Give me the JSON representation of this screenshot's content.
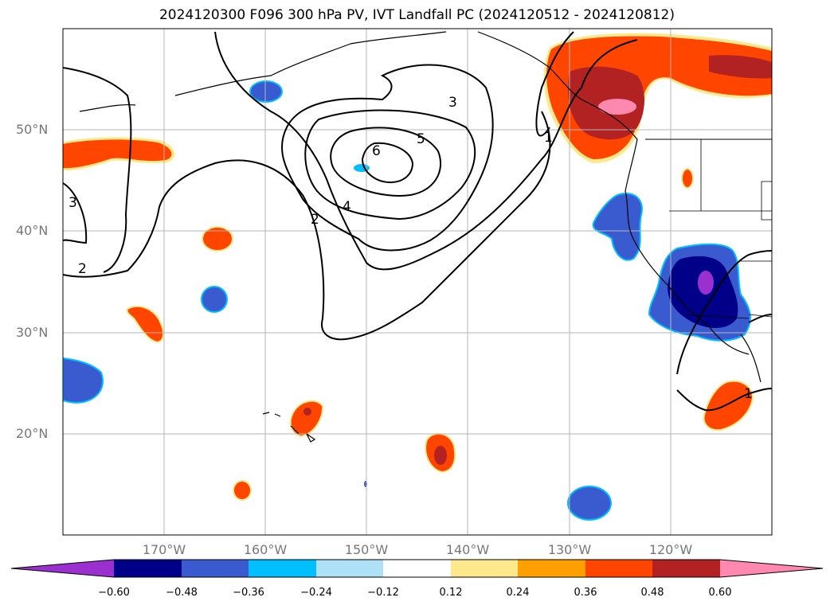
{
  "title": "2024120300 F096 300 hPa PV, IVT Landfall PC (2024120512 - 2024120812)",
  "lat_labels": [
    "50°N",
    "40°N",
    "30°N",
    "20°N"
  ],
  "lon_labels": [
    "170°W",
    "160°W",
    "150°W",
    "140°W",
    "130°W",
    "120°W"
  ],
  "contour_labels": [
    "3",
    "6",
    "5",
    "4",
    "2",
    "1",
    "3",
    "2",
    "1"
  ],
  "colorbar": {
    "ticks": [
      "−0.60",
      "−0.48",
      "−0.36",
      "−0.24",
      "−0.12",
      "0.12",
      "0.24",
      "0.36",
      "0.48",
      "0.60"
    ],
    "colors": [
      "#9a30d0",
      "#000088",
      "#3a5ad0",
      "#00bfff",
      "#aee0f8",
      "#ffffff",
      "#fde98c",
      "#ffa000",
      "#ff4500",
      "#b22222",
      "#ff88b0"
    ],
    "extend": "both"
  },
  "map": {
    "lat_range": [
      10,
      60
    ],
    "lon_range": [
      -180,
      -110
    ],
    "field": "300 hPa PV, IVT Landfall PC",
    "forecast_hour": "F096"
  }
}
